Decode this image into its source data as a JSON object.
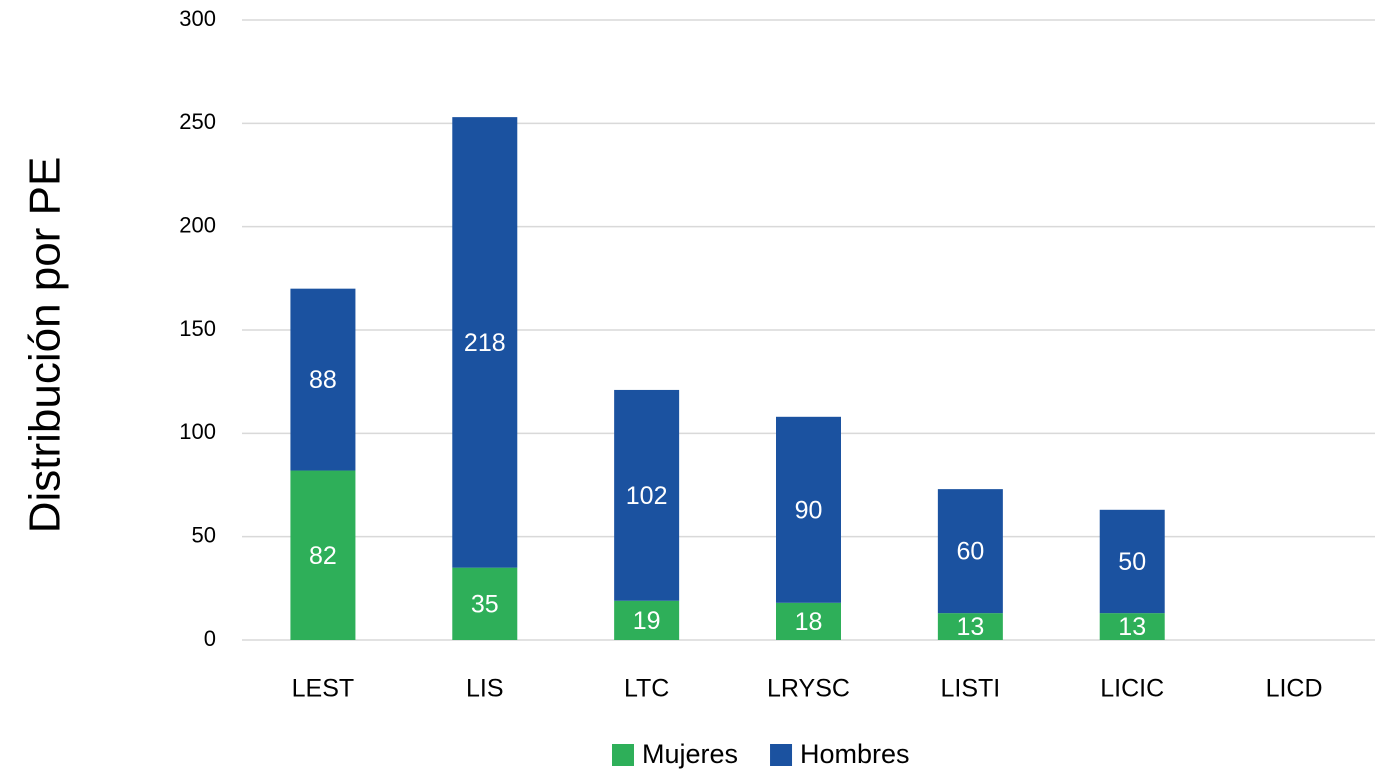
{
  "chart_data": {
    "type": "stacked_bar",
    "y_axis_label": "Distribución por PE",
    "categories": [
      "LEST",
      "LIS",
      "LTC",
      "LRYSC",
      "LISTI",
      "LICIC",
      "LICD"
    ],
    "series": [
      {
        "name": "Mujeres",
        "color": "#2eaf59",
        "values": [
          82,
          35,
          19,
          18,
          13,
          13,
          null
        ]
      },
      {
        "name": "Hombres",
        "color": "#1b52a0",
        "values": [
          88,
          218,
          102,
          90,
          60,
          50,
          null
        ]
      }
    ],
    "ylim": [
      0,
      300
    ],
    "yticks": [
      0,
      50,
      100,
      150,
      200,
      250,
      300
    ],
    "grid": true,
    "legend": "bottom"
  }
}
